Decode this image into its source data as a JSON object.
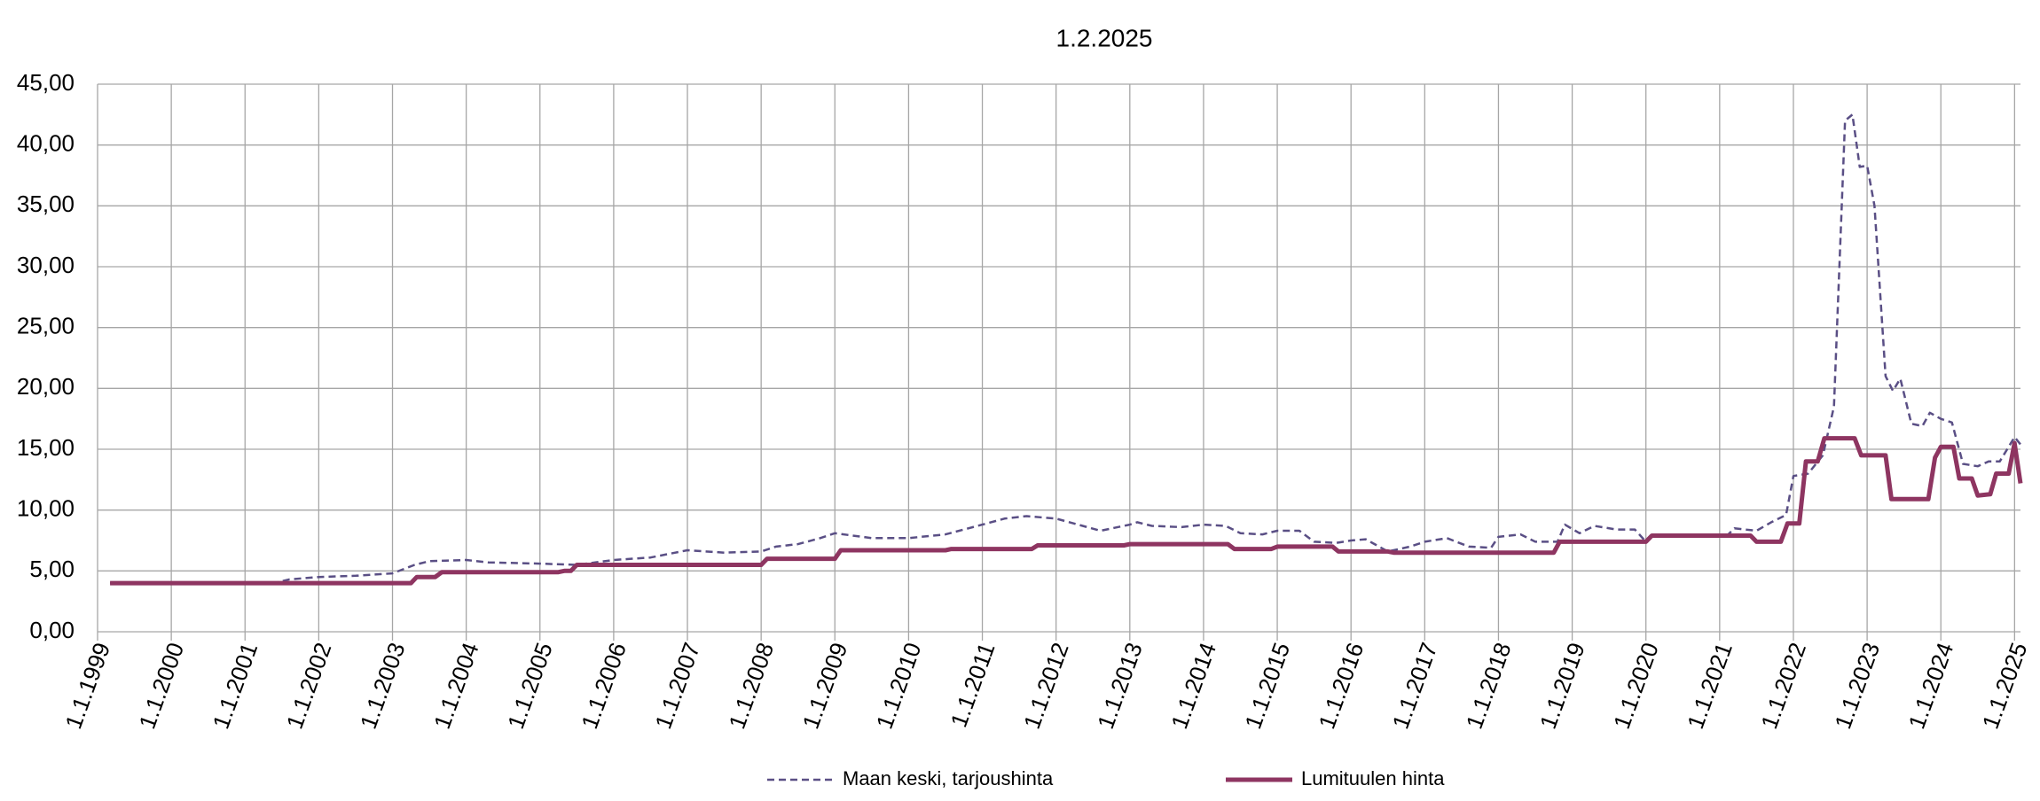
{
  "chart_data": {
    "type": "line",
    "title": "1.2.2025",
    "xlim": [
      1999,
      2025.08
    ],
    "ylim": [
      0,
      45
    ],
    "grid": true,
    "legend": "bottom",
    "yticks": [
      {
        "value": 0,
        "label": "0,00"
      },
      {
        "value": 5,
        "label": "5,00"
      },
      {
        "value": 10,
        "label": "10,00"
      },
      {
        "value": 15,
        "label": "15,00"
      },
      {
        "value": 20,
        "label": "20,00"
      },
      {
        "value": 25,
        "label": "25,00"
      },
      {
        "value": 30,
        "label": "30,00"
      },
      {
        "value": 35,
        "label": "35,00"
      },
      {
        "value": 40,
        "label": "40,00"
      },
      {
        "value": 45,
        "label": "45,00"
      }
    ],
    "xticks": [
      {
        "value": 1999,
        "label": "1.1.1999"
      },
      {
        "value": 2000,
        "label": "1.1.2000"
      },
      {
        "value": 2001,
        "label": "1.1.2001"
      },
      {
        "value": 2002,
        "label": "1.1.2002"
      },
      {
        "value": 2003,
        "label": "1.1.2003"
      },
      {
        "value": 2004,
        "label": "1.1.2004"
      },
      {
        "value": 2005,
        "label": "1.1.2005"
      },
      {
        "value": 2006,
        "label": "1.1.2006"
      },
      {
        "value": 2007,
        "label": "1.1.2007"
      },
      {
        "value": 2008,
        "label": "1.1.2008"
      },
      {
        "value": 2009,
        "label": "1.1.2009"
      },
      {
        "value": 2010,
        "label": "1.1.2010"
      },
      {
        "value": 2011,
        "label": "1.1.2011"
      },
      {
        "value": 2012,
        "label": "1.1.2012"
      },
      {
        "value": 2013,
        "label": "1.1.2013"
      },
      {
        "value": 2014,
        "label": "1.1.2014"
      },
      {
        "value": 2015,
        "label": "1.1.2015"
      },
      {
        "value": 2016,
        "label": "1.1.2016"
      },
      {
        "value": 2017,
        "label": "1.1.2017"
      },
      {
        "value": 2018,
        "label": "1.1.2018"
      },
      {
        "value": 2019,
        "label": "1.1.2019"
      },
      {
        "value": 2020,
        "label": "1.1.2020"
      },
      {
        "value": 2021,
        "label": "1.1.2021"
      },
      {
        "value": 2022,
        "label": "1.1.2022"
      },
      {
        "value": 2023,
        "label": "1.1.2023"
      },
      {
        "value": 2024,
        "label": "1.1.2024"
      },
      {
        "value": 2025,
        "label": "1.1.2025"
      }
    ],
    "series": [
      {
        "name": "Maan keski, tarjoushinta",
        "color": "#5a4f85",
        "dash": true,
        "x": [
          1999.17,
          2001.4,
          2001.6,
          2002.0,
          2002.5,
          2003.0,
          2003.3,
          2003.5,
          2004.0,
          2004.3,
          2005.0,
          2005.5,
          2006.0,
          2006.5,
          2007.0,
          2007.5,
          2008.0,
          2008.2,
          2008.5,
          2008.8,
          2009.0,
          2009.5,
          2010.0,
          2010.5,
          2011.0,
          2011.3,
          2011.6,
          2012.0,
          2012.3,
          2012.6,
          2013.0,
          2013.1,
          2013.3,
          2013.7,
          2014.0,
          2014.3,
          2014.5,
          2014.8,
          2015.0,
          2015.3,
          2015.5,
          2015.8,
          2016.0,
          2016.2,
          2016.5,
          2016.8,
          2017.0,
          2017.3,
          2017.6,
          2017.9,
          2018.0,
          2018.3,
          2018.5,
          2018.8,
          2018.9,
          2019.1,
          2019.3,
          2019.6,
          2019.85,
          2020.0,
          2020.1,
          2021.1,
          2021.2,
          2021.5,
          2021.7,
          2021.9,
          2022.0,
          2022.2,
          2022.4,
          2022.55,
          2022.7,
          2022.8,
          2022.9,
          2023.0,
          2023.1,
          2023.25,
          2023.35,
          2023.45,
          2023.6,
          2023.75,
          2023.85,
          2024.0,
          2024.15,
          2024.3,
          2024.5,
          2024.65,
          2024.8,
          2025.0,
          2025.08
        ],
        "values": [
          4.0,
          4.0,
          4.3,
          4.5,
          4.6,
          4.8,
          5.5,
          5.8,
          5.9,
          5.7,
          5.6,
          5.5,
          5.9,
          6.1,
          6.7,
          6.5,
          6.6,
          7.0,
          7.2,
          7.7,
          8.1,
          7.7,
          7.7,
          8.0,
          8.8,
          9.3,
          9.5,
          9.3,
          8.8,
          8.3,
          8.8,
          9.0,
          8.7,
          8.6,
          8.8,
          8.7,
          8.1,
          8.0,
          8.3,
          8.3,
          7.4,
          7.3,
          7.5,
          7.6,
          6.6,
          7.0,
          7.4,
          7.7,
          7.0,
          6.9,
          7.8,
          8.0,
          7.4,
          7.4,
          8.8,
          8.1,
          8.7,
          8.4,
          8.4,
          7.4,
          7.9,
          7.9,
          8.5,
          8.3,
          9.0,
          9.6,
          12.8,
          13.0,
          14.5,
          18.5,
          42.0,
          42.5,
          38.2,
          38.3,
          35.0,
          21.0,
          19.8,
          20.8,
          17.1,
          16.9,
          18.0,
          17.5,
          17.2,
          13.8,
          13.6,
          14.0,
          14.0,
          16.0,
          15.4
        ]
      },
      {
        "name": "Lumituulen hinta",
        "color": "#8e3561",
        "dash": false,
        "x": [
          1999.17,
          2003.25,
          2003.33,
          2003.58,
          2003.67,
          2005.25,
          2005.33,
          2005.42,
          2005.5,
          2008.0,
          2008.08,
          2009.0,
          2009.08,
          2010.5,
          2010.58,
          2011.67,
          2011.75,
          2012.92,
          2013.0,
          2014.33,
          2014.42,
          2014.92,
          2015.0,
          2015.75,
          2015.83,
          2016.5,
          2016.58,
          2018.75,
          2018.83,
          2020.0,
          2020.08,
          2021.42,
          2021.5,
          2021.83,
          2021.92,
          2022.08,
          2022.17,
          2022.33,
          2022.42,
          2022.83,
          2022.92,
          2023.25,
          2023.33,
          2023.83,
          2023.92,
          2024.0,
          2024.17,
          2024.25,
          2024.42,
          2024.5,
          2024.67,
          2024.75,
          2024.92,
          2025.0,
          2025.08
        ],
        "values": [
          4.0,
          4.0,
          4.5,
          4.5,
          4.9,
          4.9,
          5.0,
          5.0,
          5.5,
          5.5,
          6.0,
          6.0,
          6.7,
          6.7,
          6.8,
          6.8,
          7.1,
          7.1,
          7.2,
          7.2,
          6.8,
          6.8,
          7.0,
          7.0,
          6.6,
          6.6,
          6.5,
          6.5,
          7.4,
          7.4,
          7.9,
          7.9,
          7.4,
          7.4,
          8.9,
          8.9,
          14.0,
          14.0,
          15.9,
          15.9,
          14.5,
          14.5,
          10.9,
          10.9,
          14.3,
          15.2,
          15.2,
          12.6,
          12.6,
          11.2,
          11.3,
          13.0,
          13.0,
          15.5,
          12.2
        ]
      }
    ]
  }
}
